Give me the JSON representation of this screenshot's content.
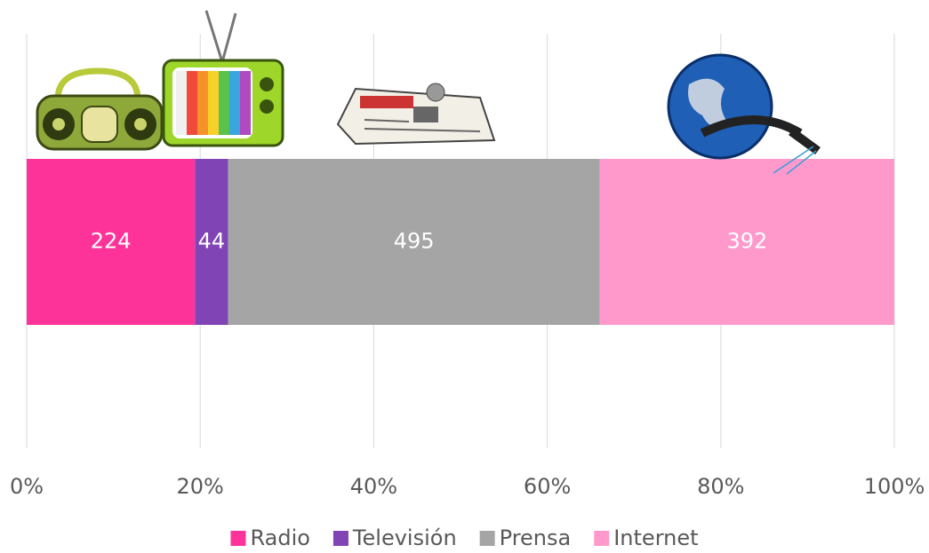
{
  "chart_data": {
    "type": "bar",
    "orientation": "horizontal",
    "stacking": "percent",
    "series": [
      {
        "name": "Radio",
        "color": "#fe3399",
        "values": [
          224
        ]
      },
      {
        "name": "Televisión",
        "color": "#8044b4",
        "values": [
          44
        ]
      },
      {
        "name": "Prensa",
        "color": "#a5a5a5",
        "values": [
          495
        ]
      },
      {
        "name": "Internet",
        "color": "#ff99cc",
        "values": [
          392
        ]
      }
    ],
    "xlim": [
      0,
      100
    ],
    "xticks": [
      {
        "value": 0,
        "label": "0%"
      },
      {
        "value": 20,
        "label": "20%"
      },
      {
        "value": 40,
        "label": "40%"
      },
      {
        "value": 60,
        "label": "60%"
      },
      {
        "value": 80,
        "label": "80%"
      },
      {
        "value": 100,
        "label": "100%"
      }
    ],
    "grid": true,
    "legend": "bottom"
  }
}
